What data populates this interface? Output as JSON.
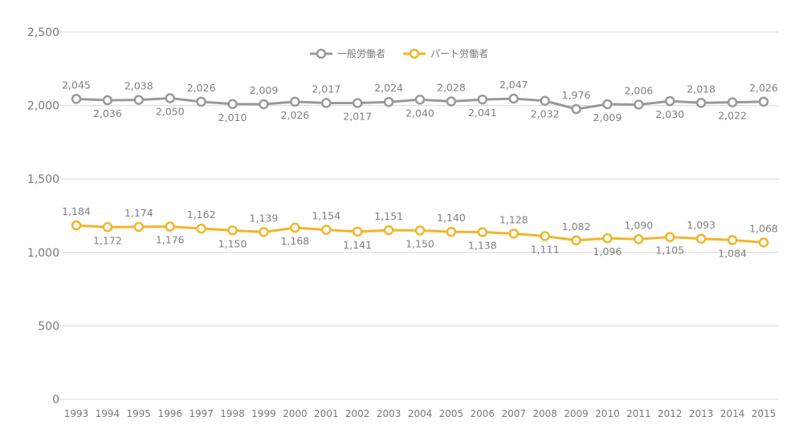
{
  "chart_data": {
    "type": "line",
    "title": "",
    "xlabel": "",
    "ylabel": "",
    "ylim": [
      0,
      2500
    ],
    "yticks": [
      "0",
      "500",
      "1,000",
      "1,500",
      "2,000",
      "2,500"
    ],
    "yticks_values": [
      0,
      500,
      1000,
      1500,
      2000,
      2500
    ],
    "grid": true,
    "legend_position": "top-center",
    "x": [
      "1993",
      "1994",
      "1995",
      "1996",
      "1997",
      "1998",
      "1999",
      "2000",
      "2001",
      "2002",
      "2003",
      "2004",
      "2005",
      "2006",
      "2007",
      "2008",
      "2009",
      "2010",
      "2011",
      "2012",
      "2013",
      "2014",
      "2015"
    ],
    "series": [
      {
        "name": "一般労働者",
        "color": "#999999",
        "label_position": [
          "above",
          "below",
          "above",
          "below",
          "above",
          "below",
          "above",
          "below",
          "above",
          "below",
          "above",
          "below",
          "above",
          "below",
          "above",
          "below",
          "above",
          "below",
          "above",
          "below",
          "above",
          "below",
          "above"
        ],
        "values": [
          2045,
          2036,
          2038,
          2050,
          2026,
          2010,
          2009,
          2026,
          2017,
          2017,
          2024,
          2040,
          2028,
          2041,
          2047,
          2032,
          1976,
          2009,
          2006,
          2030,
          2018,
          2022,
          2026
        ],
        "labels": [
          "2,045",
          "2,036",
          "2,038",
          "2,050",
          "2,026",
          "2,010",
          "2,009",
          "2,026",
          "2,017",
          "2,017",
          "2,024",
          "2,040",
          "2,028",
          "2,041",
          "2,047",
          "2,032",
          "1,976",
          "2,009",
          "2,006",
          "2,030",
          "2,018",
          "2,022",
          "2,026"
        ]
      },
      {
        "name": "パート労働者",
        "color": "#f2b52a",
        "label_position": [
          "above",
          "below",
          "above",
          "below",
          "above",
          "below",
          "above",
          "below",
          "above",
          "below",
          "above",
          "below",
          "above",
          "below",
          "above",
          "below",
          "above",
          "below",
          "above",
          "below",
          "above",
          "below",
          "above"
        ],
        "values": [
          1184,
          1172,
          1174,
          1176,
          1162,
          1150,
          1139,
          1168,
          1154,
          1141,
          1151,
          1150,
          1140,
          1138,
          1128,
          1111,
          1082,
          1096,
          1090,
          1105,
          1093,
          1084,
          1068
        ],
        "labels": [
          "1,184",
          "1,172",
          "1,174",
          "1,176",
          "1,162",
          "1,150",
          "1,139",
          "1,168",
          "1,154",
          "1,141",
          "1,151",
          "1,150",
          "1,140",
          "1,138",
          "1,128",
          "1,111",
          "1,082",
          "1,096",
          "1,090",
          "1,105",
          "1,093",
          "1,084",
          "1,068"
        ]
      }
    ]
  }
}
